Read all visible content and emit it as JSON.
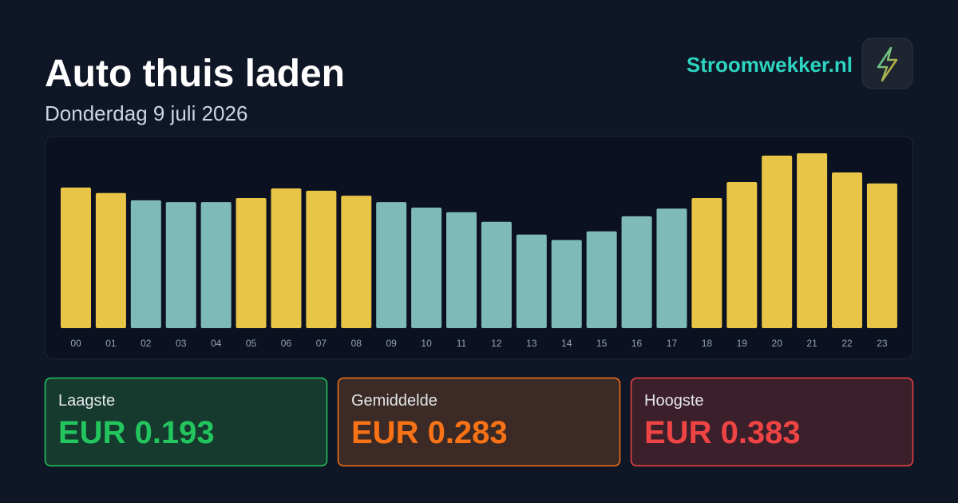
{
  "header": {
    "title": "Auto thuis laden",
    "subtitle": "Donderdag 9 juli 2026",
    "brand": "Stroomwekker.nl"
  },
  "chart_data": {
    "type": "bar",
    "categories": [
      "00",
      "01",
      "02",
      "03",
      "04",
      "05",
      "06",
      "07",
      "08",
      "09",
      "10",
      "11",
      "12",
      "13",
      "14",
      "15",
      "16",
      "17",
      "18",
      "19",
      "20",
      "21",
      "22",
      "23"
    ],
    "values": [
      0.308,
      0.296,
      0.28,
      0.276,
      0.276,
      0.285,
      0.306,
      0.301,
      0.29,
      0.276,
      0.264,
      0.254,
      0.233,
      0.205,
      0.193,
      0.212,
      0.245,
      0.262,
      0.285,
      0.32,
      0.378,
      0.383,
      0.341,
      0.317
    ],
    "colors": [
      "#e8c547",
      "#e8c547",
      "#7fbaba",
      "#7fbaba",
      "#7fbaba",
      "#e8c547",
      "#e8c547",
      "#e8c547",
      "#e8c547",
      "#7fbaba",
      "#7fbaba",
      "#7fbaba",
      "#7fbaba",
      "#7fbaba",
      "#7fbaba",
      "#7fbaba",
      "#7fbaba",
      "#7fbaba",
      "#e8c547",
      "#e8c547",
      "#e8c547",
      "#e8c547",
      "#e8c547",
      "#e8c547"
    ],
    "ylim": [
      0,
      0.383
    ]
  },
  "stats": [
    {
      "label": "Laagste",
      "value": "EUR 0.193"
    },
    {
      "label": "Gemiddelde",
      "value": "EUR 0.283"
    },
    {
      "label": "Hoogste",
      "value": "EUR 0.383"
    }
  ]
}
